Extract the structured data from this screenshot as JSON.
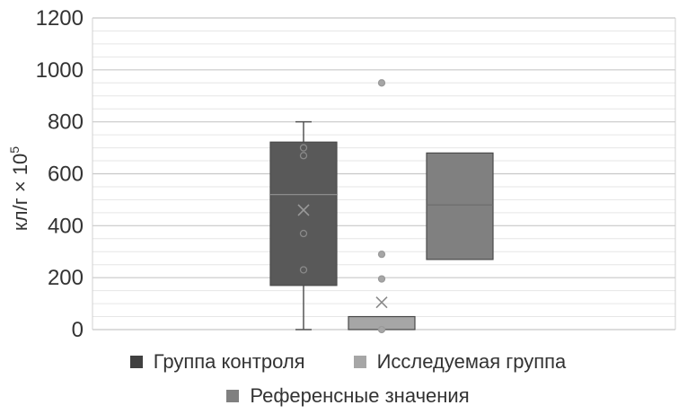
{
  "chart_data": {
    "type": "box",
    "ylabel": "кл/г × 10",
    "ylabel_sup": "5",
    "ylim": [
      0,
      1200
    ],
    "yticks": [
      "0",
      "200",
      "400",
      "600",
      "800",
      "1000",
      "1200"
    ],
    "minor_grid_step": 50,
    "grid": true,
    "legend_position": "bottom",
    "series": [
      {
        "name": "Группа контроля",
        "color": "#595959",
        "box": {
          "min": 0,
          "q1": 170,
          "median": 520,
          "q3": 722,
          "max": 800,
          "mean": 460
        },
        "points": [
          230,
          370,
          670,
          700
        ]
      },
      {
        "name": "Исследуемая группа",
        "color": "#a6a6a6",
        "box": {
          "min": 0,
          "q1": 0,
          "median": 0,
          "q3": 50,
          "max": 50,
          "mean": 105
        },
        "points": [
          0,
          195,
          290,
          950
        ]
      },
      {
        "name": "Референсные значения",
        "color": "#808080",
        "box": {
          "min": 270,
          "q1": 270,
          "median": 480,
          "q3": 680,
          "max": 680
        },
        "points": []
      }
    ]
  }
}
